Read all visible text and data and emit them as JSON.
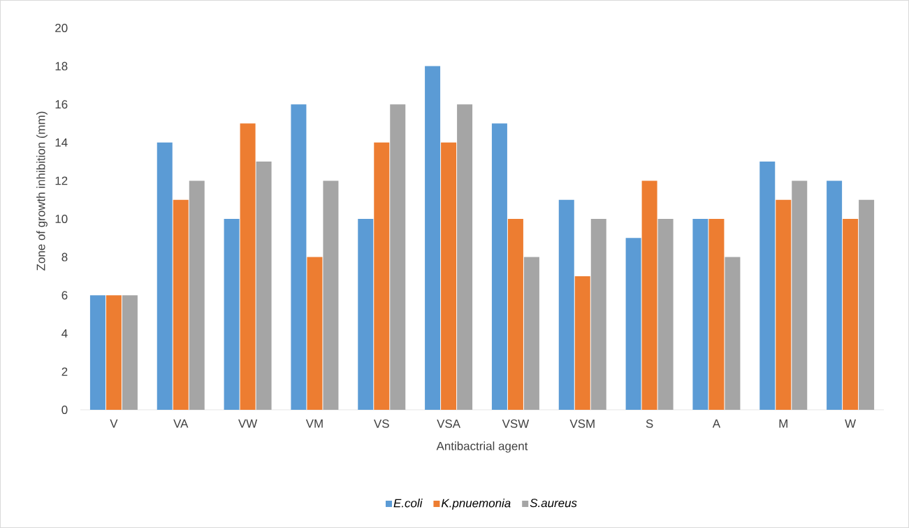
{
  "chart_data": {
    "type": "bar",
    "xlabel": "Antibactrial  agent",
    "ylabel": "Zone of growth inhibition (mm)",
    "categories": [
      "V",
      "VA",
      "VW",
      "VM",
      "VS",
      "VSA",
      "VSW",
      "VSM",
      "S",
      "A",
      "M",
      "W"
    ],
    "series": [
      {
        "name": "E.coli",
        "color": "#5b9bd5",
        "values": [
          6,
          14,
          10,
          16,
          10,
          18,
          15,
          11,
          9,
          10,
          13,
          12
        ]
      },
      {
        "name": "K.pnuemonia",
        "color": "#ed7d31",
        "values": [
          6,
          11,
          15,
          8,
          14,
          14,
          10,
          7,
          12,
          10,
          11,
          10
        ]
      },
      {
        "name": "S.aureus",
        "color": "#a5a5a5",
        "values": [
          6,
          12,
          13,
          12,
          16,
          16,
          8,
          10,
          10,
          8,
          12,
          11
        ]
      }
    ],
    "ylim": [
      0,
      20
    ],
    "yticks": [
      0,
      2,
      4,
      6,
      8,
      10,
      12,
      14,
      16,
      18,
      20
    ],
    "legend": "bottom"
  }
}
